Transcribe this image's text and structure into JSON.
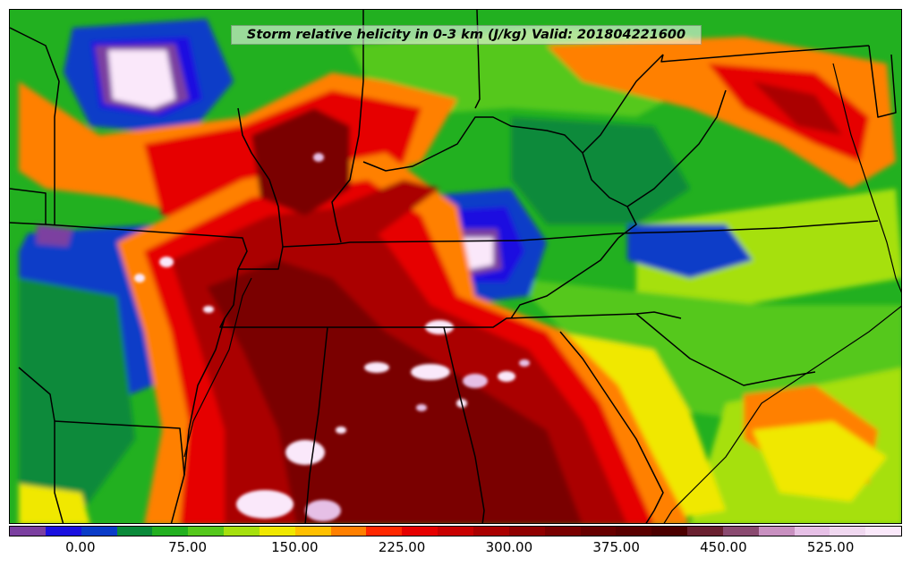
{
  "title": "Storm relative helicity in 0-3 km (J/kg) Valid: 201804221600",
  "colorbar": {
    "colors": [
      "#7b3fa0",
      "#1a10e0",
      "#0a3cc8",
      "#0a8a3a",
      "#22b020",
      "#55c81c",
      "#a6e00e",
      "#f0e800",
      "#ffc000",
      "#ff8000",
      "#ff2800",
      "#e60000",
      "#c80000",
      "#aa0000",
      "#900000",
      "#7a0000",
      "#680000",
      "#5a0000",
      "#4c0000",
      "#6a2030",
      "#8a4a70",
      "#c890c0",
      "#e6c0e6",
      "#f0d8f0",
      "#fae8fa"
    ],
    "ticks": [
      "0.00",
      "75.00",
      "150.00",
      "225.00",
      "300.00",
      "375.00",
      "450.00",
      "525.00"
    ]
  },
  "map": {
    "background_color": "#22b020",
    "palette": {
      "low_negative": "#7b3fa0",
      "very_low": "#1a10e0",
      "low": "#0a3cc8",
      "green_dark": "#0a8a3a",
      "green": "#22b020",
      "green_light": "#55c81c",
      "yellow_green": "#a6e00e",
      "yellow": "#f0e800",
      "orange": "#ff8000",
      "red": "#e60000",
      "dark_red": "#aa0000",
      "maroon": "#7a0000",
      "very_high": "#e6c0e6",
      "extreme": "#fae8fa"
    }
  }
}
